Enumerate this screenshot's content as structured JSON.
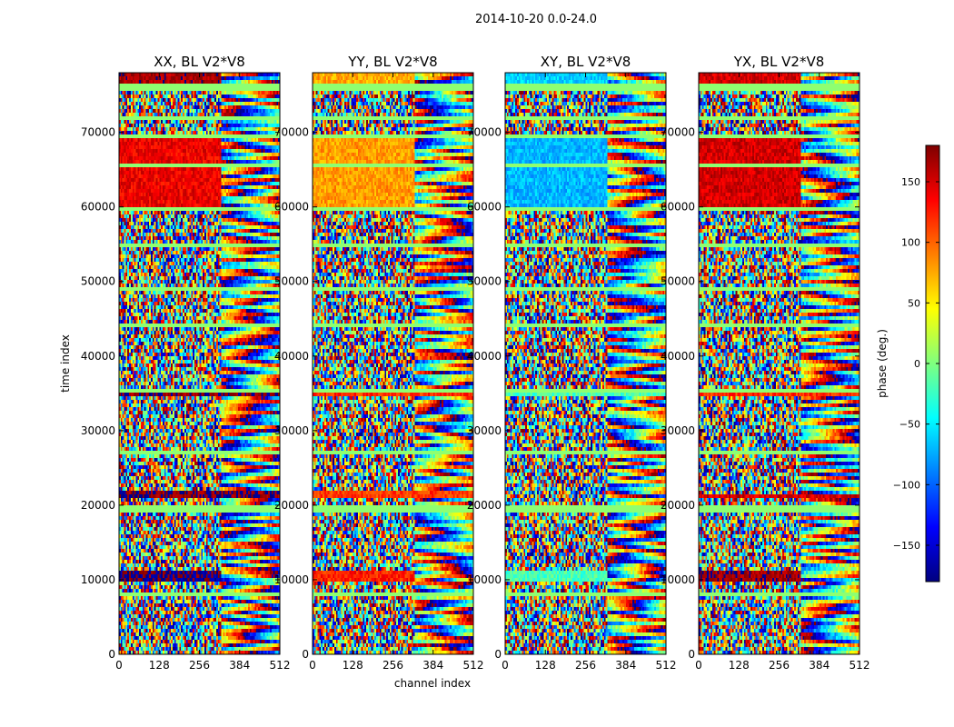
{
  "figure": {
    "suptitle": "2014-10-20 0.0-24.0"
  },
  "chart_data": {
    "type": "heatmap",
    "title": "2014-10-20 0.0-24.0",
    "xlabel": "channel index",
    "ylabel": "time index",
    "xlim": [
      0,
      512
    ],
    "ylim": [
      0,
      78000
    ],
    "xticks": [
      0,
      128,
      256,
      384,
      512
    ],
    "yticks": [
      0,
      10000,
      20000,
      30000,
      40000,
      50000,
      60000,
      70000
    ],
    "colorbar": {
      "label": "phase (deg.)",
      "range": [
        -180,
        180
      ],
      "ticks": [
        -150,
        -100,
        -50,
        0,
        50,
        100,
        150
      ],
      "colormap": "jet",
      "stops": [
        "#00007f",
        "#0000ff",
        "#007fff",
        "#00ffff",
        "#7fff7f",
        "#ffff00",
        "#ff7f00",
        "#ff0000",
        "#7f0000"
      ]
    },
    "panels": [
      {
        "title": "XX, BL V2*V8",
        "coherent_bands": [
          {
            "t0": 75500,
            "t1": 78000,
            "c0": 0,
            "c1": 325,
            "phase": 165
          },
          {
            "t0": 71800,
            "t1": 72300,
            "c0": 0,
            "c1": 325,
            "phase": 160
          },
          {
            "t0": 60000,
            "t1": 69300,
            "c0": 0,
            "c1": 325,
            "phase": 140
          },
          {
            "t0": 34800,
            "t1": 35400,
            "c0": 0,
            "c1": 512,
            "phase": 175
          },
          {
            "t0": 34400,
            "t1": 34800,
            "c0": 0,
            "c1": 512,
            "phase": 5
          },
          {
            "t0": 20900,
            "t1": 21800,
            "c0": 0,
            "c1": 512,
            "phase": 175
          },
          {
            "t0": 9800,
            "t1": 11000,
            "c0": 0,
            "c1": 325,
            "phase": -175
          }
        ]
      },
      {
        "title": "YY, BL V2*V8",
        "coherent_bands": [
          {
            "t0": 75500,
            "t1": 78000,
            "c0": 0,
            "c1": 325,
            "phase": 75
          },
          {
            "t0": 71800,
            "t1": 72300,
            "c0": 0,
            "c1": 325,
            "phase": 70
          },
          {
            "t0": 60000,
            "t1": 69300,
            "c0": 0,
            "c1": 325,
            "phase": 80
          },
          {
            "t0": 34500,
            "t1": 35400,
            "c0": 0,
            "c1": 512,
            "phase": 120
          },
          {
            "t0": 20900,
            "t1": 21800,
            "c0": 0,
            "c1": 512,
            "phase": 115
          },
          {
            "t0": 9800,
            "t1": 11000,
            "c0": 0,
            "c1": 325,
            "phase": 125
          }
        ]
      },
      {
        "title": "XY, BL V2*V8",
        "coherent_bands": [
          {
            "t0": 75500,
            "t1": 78000,
            "c0": 0,
            "c1": 325,
            "phase": -60
          },
          {
            "t0": 60000,
            "t1": 69300,
            "c0": 0,
            "c1": 325,
            "phase": -70
          },
          {
            "t0": 34500,
            "t1": 35400,
            "c0": 0,
            "c1": 512,
            "phase": -20
          },
          {
            "t0": 9800,
            "t1": 11000,
            "c0": 0,
            "c1": 325,
            "phase": -20
          }
        ]
      },
      {
        "title": "YX, BL V2*V8",
        "coherent_bands": [
          {
            "t0": 75500,
            "t1": 78000,
            "c0": 0,
            "c1": 325,
            "phase": 150
          },
          {
            "t0": 71800,
            "t1": 72300,
            "c0": 0,
            "c1": 325,
            "phase": 140
          },
          {
            "t0": 60000,
            "t1": 69300,
            "c0": 0,
            "c1": 325,
            "phase": 150
          },
          {
            "t0": 34700,
            "t1": 35300,
            "c0": 0,
            "c1": 512,
            "phase": 120
          },
          {
            "t0": 20900,
            "t1": 21500,
            "c0": 0,
            "c1": 512,
            "phase": 150
          },
          {
            "t0": 9800,
            "t1": 11000,
            "c0": 0,
            "c1": 325,
            "phase": 170
          }
        ]
      }
    ],
    "flagged_rows": [
      8000,
      19500,
      27000,
      35300,
      44000,
      49000,
      55000,
      59700,
      65600,
      69500,
      72000,
      76000
    ]
  }
}
